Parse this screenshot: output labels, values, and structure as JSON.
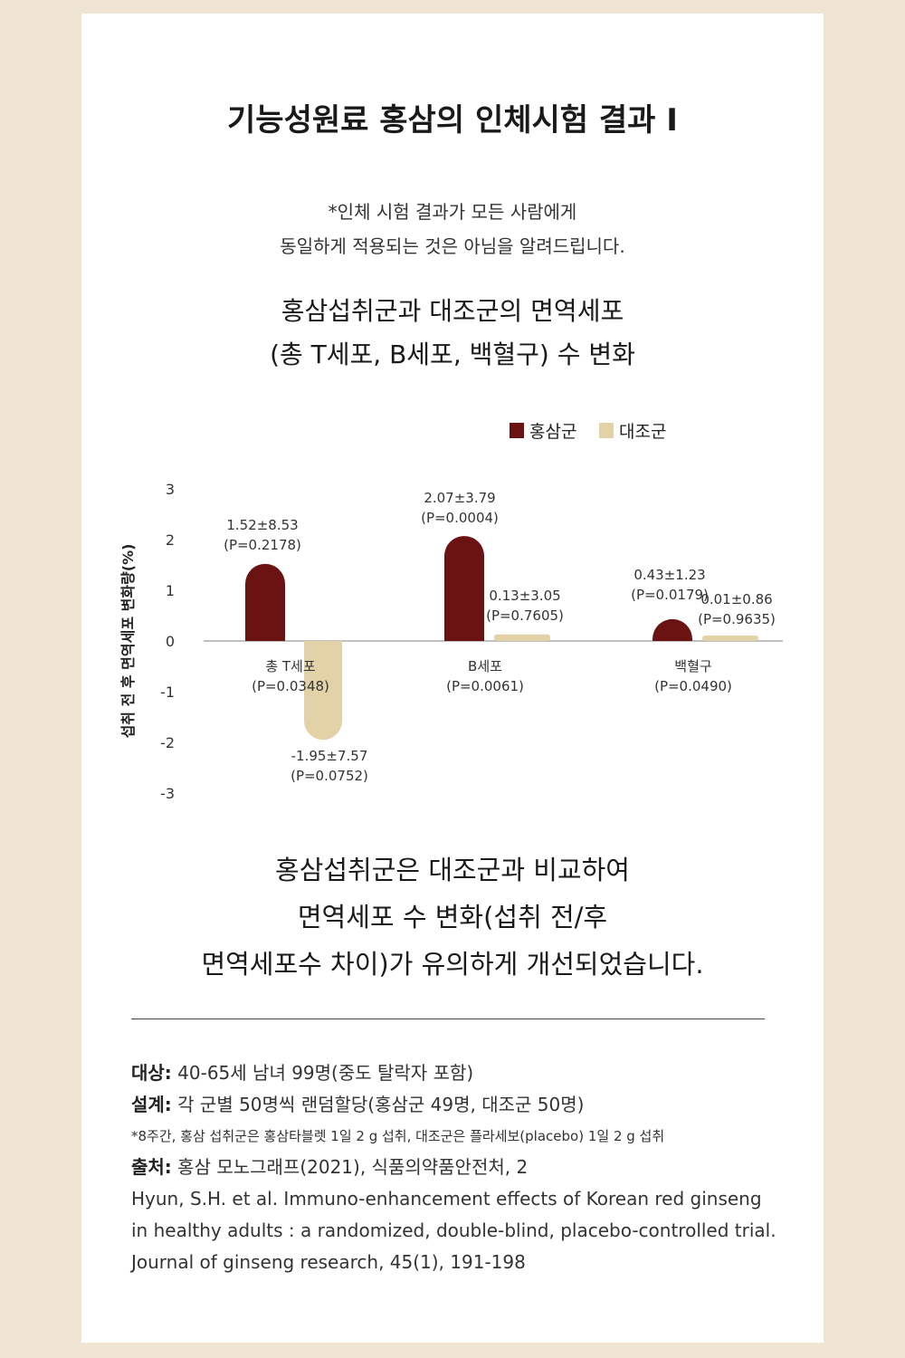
{
  "title": "기능성원료 홍삼의 인체시험 결과 I",
  "disclaimer": [
    "*인체 시험 결과가 모든 사람에게",
    "동일하게 적용되는 것은 아님을 알려드립니다."
  ],
  "subtitle": [
    "홍삼섭취군과 대조군의 면역세포",
    "(총 T세포, B세포, 백혈구) 수 변화"
  ],
  "chart_data": {
    "type": "bar",
    "ylabel": "섭취 전 후 면역세포 변화량(%)",
    "ylim": [
      -3,
      3
    ],
    "yticks": [
      "3",
      "2",
      "1",
      "0",
      "-1",
      "-2",
      "-3"
    ],
    "categories": [
      {
        "label": "총 T세포",
        "p": "(P=0.0348)"
      },
      {
        "label": "B세포",
        "p": "(P=0.0061)"
      },
      {
        "label": "백혈구",
        "p": "(P=0.0490)"
      }
    ],
    "series": [
      {
        "name": "홍삼군",
        "color": "#6b1212",
        "values": [
          1.52,
          2.07,
          0.43
        ],
        "labels": [
          "1.52±8.53",
          "2.07±3.79",
          "0.43±1.23"
        ],
        "p_labels": [
          "(P=0.2178)",
          "(P=0.0004)",
          "(P=0.0179)"
        ]
      },
      {
        "name": "대조군",
        "color": "#e3d2a8",
        "values": [
          -1.95,
          0.13,
          0.01
        ],
        "labels": [
          "-1.95±7.57",
          "0.13±3.05",
          "0.01±0.86"
        ],
        "p_labels": [
          "(P=0.0752)",
          "(P=0.7605)",
          "(P=0.9635)"
        ]
      }
    ],
    "legend": "top-right",
    "grid": false
  },
  "conclusion": [
    "홍삼섭취군은 대조군과 비교하여",
    "면역세포 수 변화(섭취 전/후",
    "면역세포수 차이)가 유의하게 개선되었습니다."
  ],
  "notes": {
    "subject_key": "대상:",
    "subject_val": " 40-65세 남녀 99명(중도 탈락자 포함)",
    "design_key": "설계:",
    "design_val": " 각 군별 50명씩 랜덤할당(홍삼군 49명, 대조군 50명)",
    "footnote": "*8주간, 홍삼 섭취군은 홍삼타블렛 1일 2 g 섭취, 대조군은 플라세보(placebo) 1일 2 g 섭취",
    "source_key": "출처:",
    "source_val": " 홍삼 모노그래프(2021), 식품의약품안전처, 2",
    "reference": [
      "Hyun, S.H. et al. Immuno-enhancement effects of Korean red ginseng",
      "in healthy adults : a randomized, double-blind, placebo-controlled trial.",
      "Journal of ginseng research, 45(1), 191-198"
    ]
  }
}
